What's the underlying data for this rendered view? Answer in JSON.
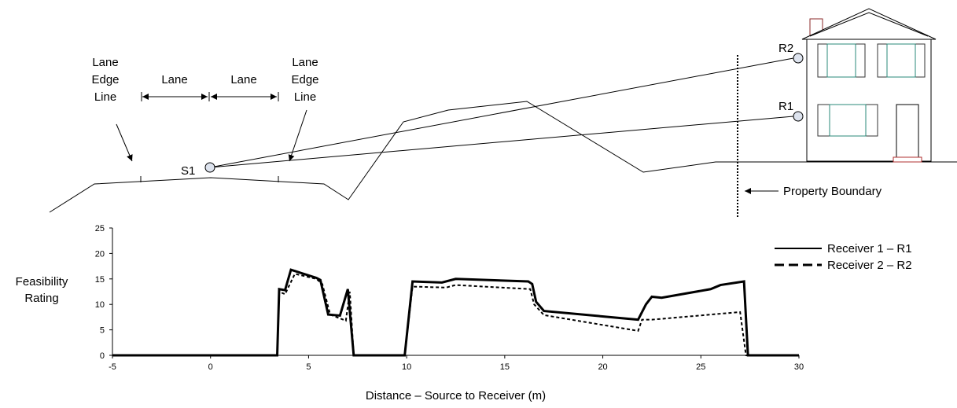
{
  "diagram": {
    "left_edge_label": [
      "Lane",
      "Edge",
      "Line"
    ],
    "lane_left": "Lane",
    "lane_right": "Lane",
    "right_edge_label": [
      "Lane",
      "Edge",
      "Line"
    ],
    "source": "S1",
    "receiver_1": "R1",
    "receiver_2": "R2",
    "boundary": "Property Boundary"
  },
  "chart_data": {
    "type": "line",
    "xlabel": "Distance – Source to Receiver (m)",
    "ylabel": "Feasibility Rating",
    "xlim": [
      -5,
      30
    ],
    "ylim": [
      0,
      25
    ],
    "xticks": [
      -5,
      0,
      5,
      10,
      15,
      20,
      25,
      30
    ],
    "yticks": [
      0,
      5,
      10,
      15,
      20,
      25
    ],
    "legend": "upper right",
    "series": [
      {
        "name": "Receiver 1 – R1",
        "color": "#000000",
        "line_style": "solid",
        "x": [
          -5,
          3.4,
          3.5,
          3.8,
          4.1,
          5.4,
          5.6,
          6,
          6.6,
          7,
          7.3,
          9.9,
          10.3,
          11.8,
          12.5,
          16.2,
          16.4,
          16.6,
          17,
          21.8,
          22.2,
          22.5,
          23,
          25.5,
          26,
          27.2,
          27.4,
          30
        ],
        "values": [
          0,
          0,
          13,
          12.8,
          16.8,
          15.2,
          14.8,
          8,
          7.8,
          13,
          0,
          0,
          14.5,
          14.3,
          15,
          14.5,
          14,
          10.5,
          8.7,
          7,
          10,
          11.5,
          11.3,
          13,
          13.8,
          14.5,
          0,
          0
        ]
      },
      {
        "name": "Receiver 2 – R2",
        "color": "#000000",
        "line_style": "dashed",
        "x": [
          -5,
          3.4,
          3.5,
          3.8,
          4.3,
          5.4,
          5.7,
          6.1,
          6.9,
          7.1,
          7.3,
          9.9,
          10.3,
          12,
          12.5,
          16.3,
          16.5,
          17,
          21.8,
          22,
          22.5,
          27,
          27.3,
          30
        ],
        "values": [
          0,
          0,
          12.5,
          12,
          16,
          15,
          14,
          8,
          6.8,
          12.5,
          0,
          0,
          13.5,
          13.3,
          13.8,
          13,
          10,
          7.9,
          4.8,
          7,
          7,
          8.5,
          0,
          0
        ]
      }
    ]
  }
}
